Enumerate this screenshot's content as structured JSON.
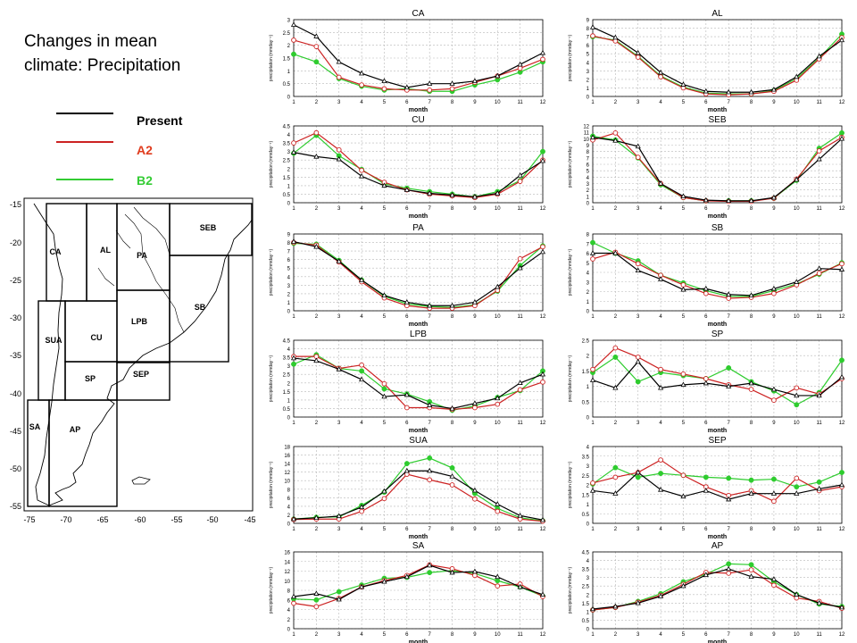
{
  "title_line1": "Changes in mean",
  "title_line2": "climate: Precipitation",
  "legend": [
    {
      "label": "Present",
      "color": "#000000",
      "text_color": "#000000"
    },
    {
      "label": "A2",
      "color": "#cc2222",
      "text_color": "#e03c1e"
    },
    {
      "label": "B2",
      "color": "#33cc33",
      "text_color": "#33cc33"
    }
  ],
  "colors": {
    "present": "#000000",
    "a2": "#cc2222",
    "b2": "#2ecc2e"
  },
  "map": {
    "y_ticks": [
      "-15",
      "-20",
      "-25",
      "-30",
      "-35",
      "-40",
      "-45",
      "-50",
      "-55"
    ],
    "x_ticks": [
      "-75",
      "-70",
      "-65",
      "-60",
      "-55",
      "-50",
      "-45"
    ],
    "regions": [
      "CA",
      "AL",
      "PA",
      "SEB",
      "SB",
      "CU",
      "LPB",
      "SUA",
      "SP",
      "SEP",
      "SA",
      "AP"
    ]
  },
  "chart_data": [
    {
      "type": "line",
      "title": "CA",
      "xlabel": "month",
      "ylabel": "precipitation (mmday⁻¹)",
      "x": [
        1,
        2,
        3,
        4,
        5,
        6,
        7,
        8,
        9,
        10,
        11,
        12
      ],
      "ylim": [
        0,
        3
      ],
      "yticks": [
        "0",
        "0.5",
        "1",
        "1.5",
        "2",
        "2.5",
        "3"
      ],
      "series": [
        {
          "name": "Present",
          "values": [
            2.8,
            2.35,
            1.35,
            0.9,
            0.6,
            0.35,
            0.5,
            0.5,
            0.6,
            0.8,
            1.25,
            1.7
          ]
        },
        {
          "name": "A2",
          "values": [
            2.2,
            1.95,
            0.75,
            0.45,
            0.3,
            0.25,
            0.25,
            0.3,
            0.55,
            0.8,
            1.1,
            1.45
          ]
        },
        {
          "name": "B2",
          "values": [
            1.65,
            1.35,
            0.7,
            0.4,
            0.25,
            0.3,
            0.2,
            0.2,
            0.45,
            0.65,
            0.95,
            1.35
          ]
        }
      ]
    },
    {
      "type": "line",
      "title": "AL",
      "xlabel": "month",
      "ylabel": "precipitation (mmday⁻¹)",
      "x": [
        1,
        2,
        3,
        4,
        5,
        6,
        7,
        8,
        9,
        10,
        11,
        12
      ],
      "ylim": [
        0,
        9
      ],
      "yticks": [
        "0",
        "1",
        "2",
        "3",
        "4",
        "5",
        "6",
        "7",
        "8",
        "9"
      ],
      "series": [
        {
          "name": "Present",
          "values": [
            8.1,
            6.9,
            5.1,
            2.8,
            1.4,
            0.6,
            0.5,
            0.5,
            0.8,
            2.3,
            4.7,
            6.6
          ]
        },
        {
          "name": "A2",
          "values": [
            7.1,
            6.5,
            4.6,
            2.3,
            1.0,
            0.3,
            0.2,
            0.3,
            0.6,
            1.9,
            4.4,
            6.9
          ]
        },
        {
          "name": "B2",
          "values": [
            7.0,
            6.6,
            4.7,
            2.4,
            1.1,
            0.4,
            0.3,
            0.3,
            0.7,
            2.1,
            4.5,
            7.3
          ]
        }
      ]
    },
    {
      "type": "line",
      "title": "CU",
      "xlabel": "month",
      "ylabel": "precipitation (mmday⁻¹)",
      "x": [
        1,
        2,
        3,
        4,
        5,
        6,
        7,
        8,
        9,
        10,
        11,
        12
      ],
      "ylim": [
        0,
        4.5
      ],
      "yticks": [
        "0",
        "0.5",
        "1",
        "1.5",
        "2",
        "2.5",
        "3",
        "3.5",
        "4",
        "4.5"
      ],
      "series": [
        {
          "name": "Present",
          "values": [
            2.95,
            2.7,
            2.55,
            1.55,
            1.0,
            0.75,
            0.55,
            0.45,
            0.35,
            0.55,
            1.6,
            2.45
          ]
        },
        {
          "name": "A2",
          "values": [
            3.5,
            4.1,
            3.1,
            1.9,
            1.2,
            0.75,
            0.5,
            0.4,
            0.3,
            0.5,
            1.25,
            2.5
          ]
        },
        {
          "name": "B2",
          "values": [
            2.9,
            3.95,
            2.75,
            1.95,
            1.1,
            0.85,
            0.65,
            0.5,
            0.35,
            0.65,
            1.3,
            3.0
          ]
        }
      ]
    },
    {
      "type": "line",
      "title": "SEB",
      "xlabel": "month",
      "ylabel": "precipitation (mmday⁻¹)",
      "x": [
        1,
        2,
        3,
        4,
        5,
        6,
        7,
        8,
        9,
        10,
        11,
        12
      ],
      "ylim": [
        0,
        12
      ],
      "yticks": [
        "0",
        "1",
        "2",
        "3",
        "4",
        "5",
        "6",
        "7",
        "8",
        "9",
        "10",
        "11",
        "12"
      ],
      "series": [
        {
          "name": "Present",
          "values": [
            10.2,
            9.7,
            8.8,
            3.0,
            1.0,
            0.4,
            0.3,
            0.3,
            0.8,
            3.6,
            6.8,
            10.0
          ]
        },
        {
          "name": "A2",
          "values": [
            9.8,
            10.9,
            7.1,
            3.0,
            0.8,
            0.3,
            0.2,
            0.2,
            0.7,
            3.7,
            8.1,
            10.2
          ]
        },
        {
          "name": "B2",
          "values": [
            10.4,
            9.8,
            7.0,
            2.8,
            0.8,
            0.3,
            0.3,
            0.3,
            0.7,
            3.5,
            8.5,
            10.9
          ]
        }
      ]
    },
    {
      "type": "line",
      "title": "PA",
      "xlabel": "month",
      "ylabel": "precipitation (mmday⁻¹)",
      "x": [
        1,
        2,
        3,
        4,
        5,
        6,
        7,
        8,
        9,
        10,
        11,
        12
      ],
      "ylim": [
        0,
        9
      ],
      "yticks": [
        "0",
        "1",
        "2",
        "3",
        "4",
        "5",
        "6",
        "7",
        "8",
        "9"
      ],
      "series": [
        {
          "name": "Present",
          "values": [
            8.1,
            7.5,
            5.8,
            3.6,
            1.8,
            1.0,
            0.6,
            0.6,
            1.0,
            2.8,
            5.0,
            6.9
          ]
        },
        {
          "name": "A2",
          "values": [
            8.0,
            7.7,
            5.7,
            3.4,
            1.5,
            0.6,
            0.3,
            0.3,
            0.6,
            2.4,
            6.1,
            7.5
          ]
        },
        {
          "name": "B2",
          "values": [
            7.9,
            7.8,
            5.9,
            3.6,
            1.7,
            0.8,
            0.5,
            0.4,
            0.7,
            2.3,
            5.3,
            7.6
          ]
        }
      ]
    },
    {
      "type": "line",
      "title": "SB",
      "xlabel": "month",
      "ylabel": "precipitation (mmday⁻¹)",
      "x": [
        1,
        2,
        3,
        4,
        5,
        6,
        7,
        8,
        9,
        10,
        11,
        12
      ],
      "ylim": [
        0,
        8
      ],
      "yticks": [
        "0",
        "1",
        "2",
        "3",
        "4",
        "5",
        "6",
        "7",
        "8"
      ],
      "series": [
        {
          "name": "Present",
          "values": [
            6.0,
            6.0,
            4.2,
            3.3,
            2.2,
            2.3,
            1.7,
            1.6,
            2.3,
            3.0,
            4.4,
            4.3
          ]
        },
        {
          "name": "A2",
          "values": [
            5.4,
            6.1,
            4.9,
            3.7,
            2.7,
            1.8,
            1.3,
            1.4,
            1.8,
            2.7,
            3.9,
            4.9
          ]
        },
        {
          "name": "B2",
          "values": [
            7.1,
            6.0,
            5.2,
            3.7,
            2.9,
            2.1,
            1.5,
            1.5,
            2.1,
            2.8,
            3.8,
            5.0
          ]
        }
      ]
    },
    {
      "type": "line",
      "title": "LPB",
      "xlabel": "month",
      "ylabel": "precipitation (mmday⁻¹)",
      "x": [
        1,
        2,
        3,
        4,
        5,
        6,
        7,
        8,
        9,
        10,
        11,
        12
      ],
      "ylim": [
        0,
        4.5
      ],
      "yticks": [
        "0",
        "0.5",
        "1",
        "1.5",
        "2",
        "2.5",
        "3",
        "3.5",
        "4",
        "4.5"
      ],
      "series": [
        {
          "name": "Present",
          "values": [
            3.45,
            3.3,
            2.8,
            2.2,
            1.2,
            1.3,
            0.7,
            0.5,
            0.8,
            1.1,
            2.0,
            2.5
          ]
        },
        {
          "name": "A2",
          "values": [
            3.55,
            3.55,
            2.85,
            3.05,
            1.95,
            0.55,
            0.55,
            0.45,
            0.55,
            0.75,
            1.6,
            2.05
          ]
        },
        {
          "name": "B2",
          "values": [
            3.1,
            3.65,
            2.85,
            2.7,
            1.65,
            1.35,
            0.9,
            0.4,
            0.65,
            1.15,
            1.55,
            2.7
          ]
        }
      ]
    },
    {
      "type": "line",
      "title": "SP",
      "xlabel": "month",
      "ylabel": "precipitation (mmday⁻¹)",
      "x": [
        1,
        2,
        3,
        4,
        5,
        6,
        7,
        8,
        9,
        10,
        11,
        12
      ],
      "ylim": [
        0,
        2.5
      ],
      "yticks": [
        "0",
        "0.5",
        "1",
        "1.5",
        "2",
        "2.5"
      ],
      "series": [
        {
          "name": "Present",
          "values": [
            1.2,
            0.95,
            1.8,
            0.95,
            1.05,
            1.1,
            1.0,
            1.1,
            0.9,
            0.7,
            0.7,
            1.3
          ]
        },
        {
          "name": "A2",
          "values": [
            1.55,
            2.25,
            1.95,
            1.55,
            1.4,
            1.25,
            1.05,
            0.9,
            0.55,
            0.95,
            0.75,
            1.25
          ]
        },
        {
          "name": "B2",
          "values": [
            1.45,
            1.95,
            1.15,
            1.45,
            1.35,
            1.25,
            1.6,
            1.15,
            0.85,
            0.4,
            0.8,
            1.85
          ]
        }
      ]
    },
    {
      "type": "line",
      "title": "SUA",
      "xlabel": "month",
      "ylabel": "precipitation (mmday⁻¹)",
      "x": [
        1,
        2,
        3,
        4,
        5,
        6,
        7,
        8,
        9,
        10,
        11,
        12
      ],
      "ylim": [
        0,
        18
      ],
      "yticks": [
        "0",
        "2",
        "4",
        "6",
        "8",
        "10",
        "12",
        "14",
        "16",
        "18"
      ],
      "series": [
        {
          "name": "Present",
          "values": [
            1.0,
            1.3,
            1.7,
            3.8,
            7.5,
            12.3,
            12.3,
            11.0,
            7.7,
            4.5,
            1.8,
            0.8
          ]
        },
        {
          "name": "A2",
          "values": [
            0.9,
            1.0,
            1.0,
            2.8,
            5.8,
            11.5,
            10.2,
            9.0,
            5.7,
            2.8,
            1.0,
            0.5
          ]
        },
        {
          "name": "B2",
          "values": [
            1.0,
            1.4,
            1.5,
            4.2,
            7.3,
            14.0,
            15.3,
            13.0,
            7.0,
            3.5,
            1.3,
            0.6
          ]
        }
      ]
    },
    {
      "type": "line",
      "title": "SEP",
      "xlabel": "month",
      "ylabel": "precipitation (mmday⁻¹)",
      "x": [
        1,
        2,
        3,
        4,
        5,
        6,
        7,
        8,
        9,
        10,
        11,
        12
      ],
      "ylim": [
        0,
        4
      ],
      "yticks": [
        "0",
        "0.5",
        "1",
        "1.5",
        "2",
        "2.5",
        "3",
        "3.5",
        "4"
      ],
      "series": [
        {
          "name": "Present",
          "values": [
            1.7,
            1.55,
            2.65,
            1.75,
            1.4,
            1.7,
            1.25,
            1.55,
            1.55,
            1.55,
            1.8,
            2.0
          ]
        },
        {
          "name": "A2",
          "values": [
            2.1,
            2.4,
            2.65,
            3.3,
            2.5,
            1.9,
            1.45,
            1.7,
            1.15,
            2.35,
            1.7,
            1.9
          ]
        },
        {
          "name": "B2",
          "values": [
            2.05,
            2.9,
            2.4,
            2.6,
            2.5,
            2.4,
            2.35,
            2.25,
            2.3,
            1.9,
            2.15,
            2.65
          ]
        }
      ]
    },
    {
      "type": "line",
      "title": "SA",
      "xlabel": "month",
      "ylabel": "precipitation (mmday⁻¹)",
      "x": [
        1,
        2,
        3,
        4,
        5,
        6,
        7,
        8,
        9,
        10,
        11,
        12
      ],
      "ylim": [
        0,
        16
      ],
      "yticks": [
        "0",
        "2",
        "4",
        "6",
        "8",
        "10",
        "12",
        "14",
        "16"
      ],
      "series": [
        {
          "name": "Present",
          "values": [
            6.7,
            7.3,
            6.1,
            8.7,
            9.8,
            10.8,
            13.2,
            11.7,
            11.9,
            10.8,
            8.7,
            7.1
          ]
        },
        {
          "name": "A2",
          "values": [
            5.3,
            4.6,
            6.3,
            8.7,
            10.0,
            11.1,
            13.3,
            12.5,
            11.1,
            8.9,
            9.3,
            6.7
          ]
        },
        {
          "name": "B2",
          "values": [
            6.2,
            6.0,
            7.7,
            9.1,
            10.5,
            10.7,
            11.7,
            12.1,
            11.5,
            10.0,
            8.7,
            6.8
          ]
        }
      ]
    },
    {
      "type": "line",
      "title": "AP",
      "xlabel": "month",
      "ylabel": "precipitation (mmday⁻¹)",
      "x": [
        1,
        2,
        3,
        4,
        5,
        6,
        7,
        8,
        9,
        10,
        11,
        12
      ],
      "ylim": [
        0,
        4.5
      ],
      "yticks": [
        "0",
        "0.5",
        "1",
        "1.5",
        "2",
        "2.5",
        "3",
        "3.5",
        "4",
        "4.5"
      ],
      "series": [
        {
          "name": "Present",
          "values": [
            1.15,
            1.3,
            1.5,
            1.9,
            2.5,
            3.15,
            3.5,
            3.05,
            2.9,
            2.0,
            1.5,
            1.25
          ]
        },
        {
          "name": "A2",
          "values": [
            1.1,
            1.25,
            1.55,
            1.95,
            2.6,
            3.3,
            3.25,
            3.45,
            2.55,
            1.8,
            1.6,
            1.2
          ]
        },
        {
          "name": "B2",
          "values": [
            1.1,
            1.25,
            1.6,
            2.05,
            2.75,
            3.2,
            3.8,
            3.75,
            2.75,
            2.0,
            1.45,
            1.3
          ]
        }
      ]
    }
  ]
}
